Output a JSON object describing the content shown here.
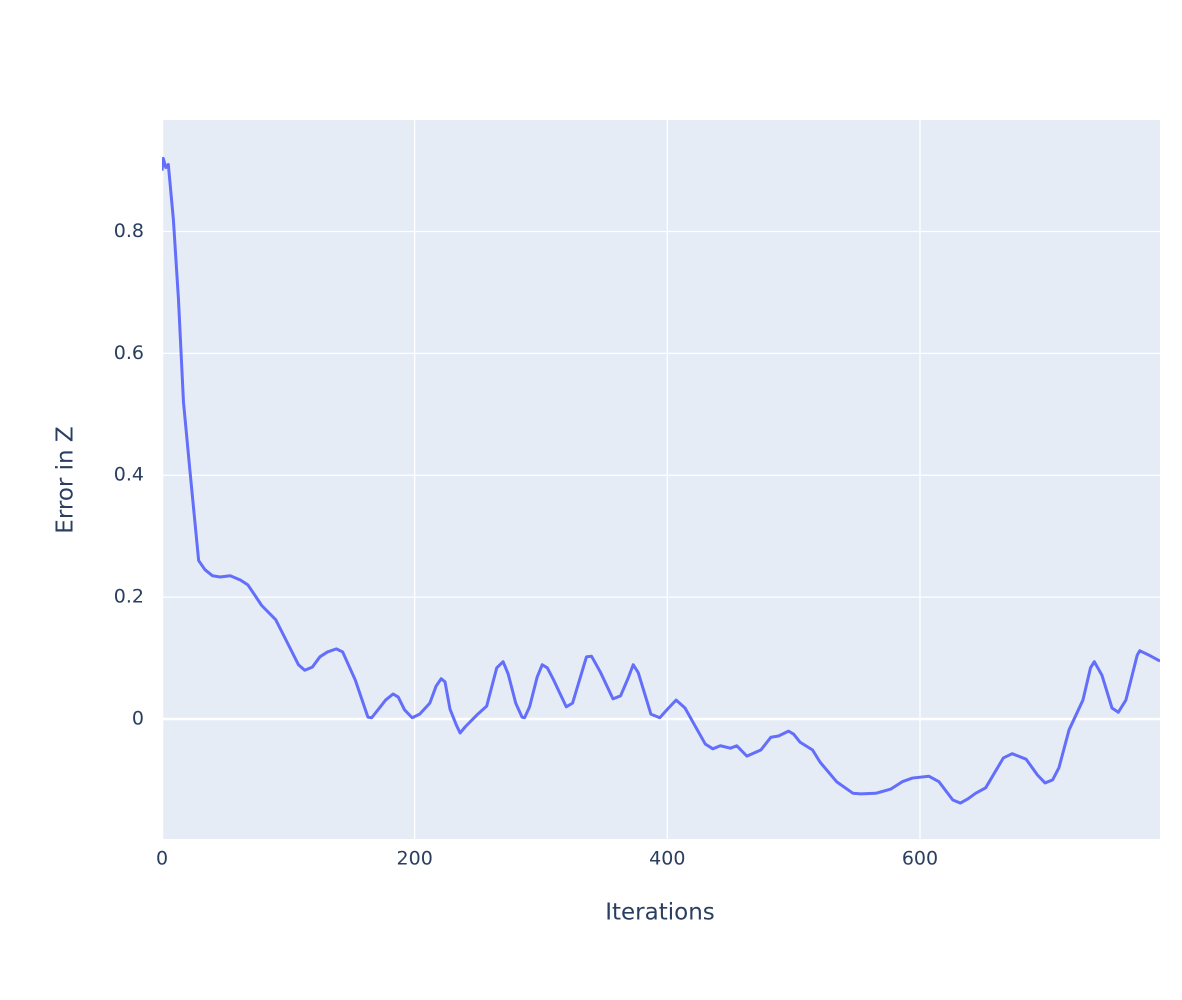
{
  "chart_data": {
    "type": "line",
    "x_label": "Iterations",
    "y_label": "Error in Z",
    "x": [
      0,
      1,
      3,
      5,
      9,
      13,
      17,
      22,
      29,
      34,
      40,
      46,
      54,
      62,
      68,
      79,
      90,
      100,
      108,
      113,
      119,
      125,
      131,
      138,
      143,
      153,
      163,
      166,
      177,
      183,
      187,
      192,
      198,
      204,
      212,
      217,
      221,
      224,
      228,
      233,
      236,
      240,
      250,
      257,
      265,
      270,
      274,
      280,
      285,
      287,
      291,
      297,
      301,
      305,
      310,
      320,
      325,
      336,
      340,
      347,
      357,
      363,
      369,
      373,
      377,
      387,
      394,
      401,
      407,
      414,
      430,
      436,
      442,
      450,
      455,
      463,
      474,
      482,
      488,
      496,
      500,
      505,
      515,
      521,
      534,
      547,
      553,
      565,
      577,
      586,
      594,
      607,
      615,
      626,
      632,
      638,
      644,
      652,
      666,
      673,
      684,
      693,
      699,
      705,
      710,
      718,
      729,
      735,
      738,
      744,
      752,
      757,
      763,
      772,
      774,
      781,
      790
    ],
    "series": [
      {
        "name": "Error in Z",
        "color": "#636efa",
        "values": [
          0.9,
          0.92,
          0.905,
          0.91,
          0.82,
          0.69,
          0.52,
          0.41,
          0.26,
          0.245,
          0.235,
          0.233,
          0.235,
          0.228,
          0.22,
          0.186,
          0.163,
          0.122,
          0.089,
          0.08,
          0.085,
          0.102,
          0.11,
          0.115,
          0.11,
          0.064,
          0.003,
          0.002,
          0.031,
          0.041,
          0.036,
          0.015,
          0.002,
          0.008,
          0.026,
          0.054,
          0.066,
          0.061,
          0.016,
          -0.01,
          -0.023,
          -0.013,
          0.008,
          0.021,
          0.084,
          0.094,
          0.074,
          0.026,
          0.003,
          0.002,
          0.02,
          0.069,
          0.089,
          0.084,
          0.064,
          0.02,
          0.026,
          0.102,
          0.103,
          0.077,
          0.033,
          0.038,
          0.067,
          0.089,
          0.076,
          0.008,
          0.002,
          0.018,
          0.031,
          0.018,
          -0.041,
          -0.049,
          -0.044,
          -0.048,
          -0.044,
          -0.061,
          -0.051,
          -0.03,
          -0.028,
          -0.02,
          -0.025,
          -0.038,
          -0.051,
          -0.071,
          -0.103,
          -0.122,
          -0.123,
          -0.122,
          -0.115,
          -0.103,
          -0.097,
          -0.094,
          -0.103,
          -0.133,
          -0.138,
          -0.131,
          -0.122,
          -0.113,
          -0.064,
          -0.057,
          -0.066,
          -0.092,
          -0.105,
          -0.1,
          -0.08,
          -0.018,
          0.031,
          0.084,
          0.094,
          0.072,
          0.018,
          0.011,
          0.031,
          0.105,
          0.112,
          0.105,
          0.095
        ]
      }
    ],
    "xlim": [
      0,
      790
    ],
    "xticks": [
      0,
      200,
      400,
      600
    ],
    "ylim": [
      -0.197,
      0.983
    ],
    "yticks": [
      0,
      0.2,
      0.4,
      0.6,
      0.8
    ],
    "grid": true
  }
}
